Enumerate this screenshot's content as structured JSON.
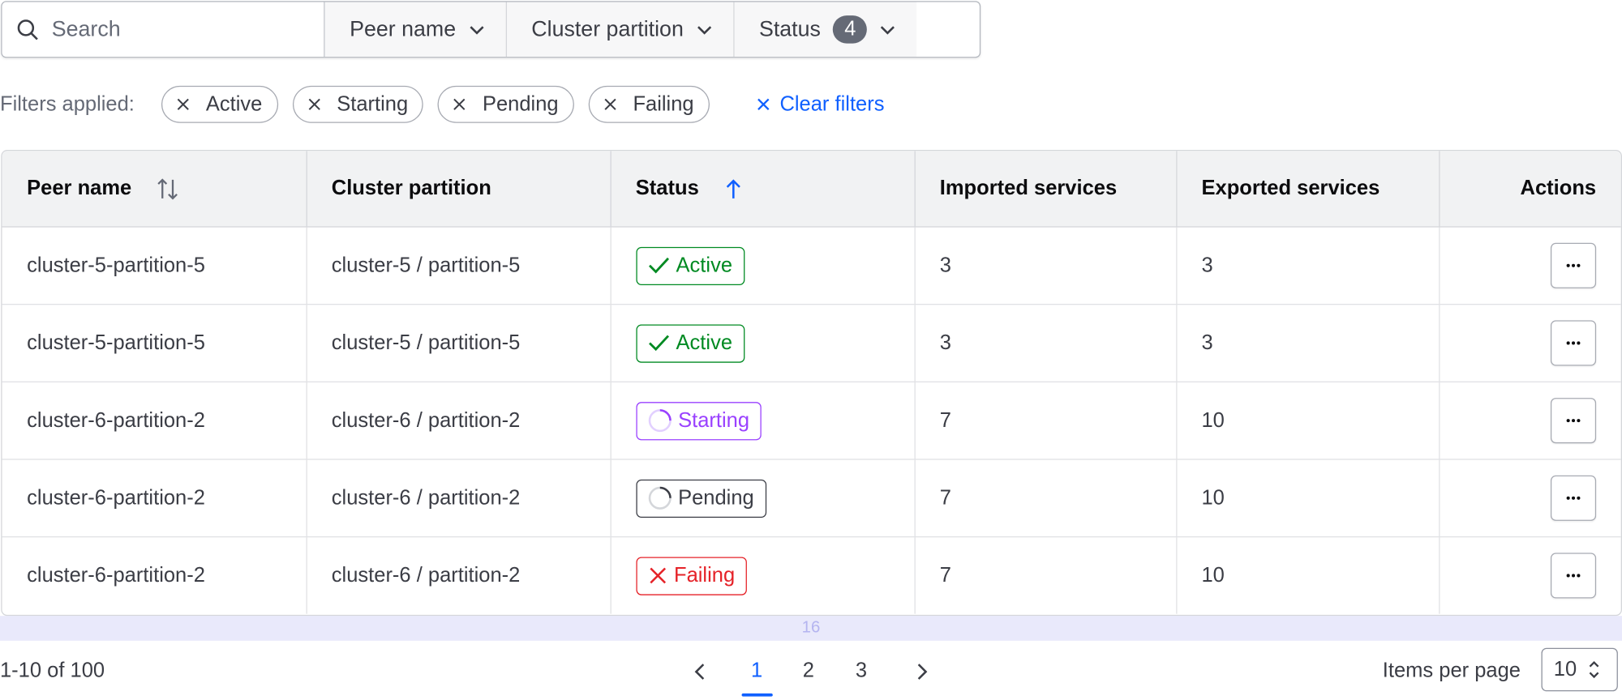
{
  "toolbar": {
    "search_placeholder": "Search",
    "peer_name": "Peer name",
    "cluster_partition": "Cluster partition",
    "status": "Status",
    "status_count": "4"
  },
  "filters": {
    "label": "Filters applied:",
    "chips": [
      "Active",
      "Starting",
      "Pending",
      "Failing"
    ],
    "clear": "Clear filters"
  },
  "table": {
    "headers": [
      "Peer name",
      "Cluster partition",
      "Status",
      "Imported services",
      "Exported services",
      "Actions"
    ],
    "rows": [
      {
        "peer": "cluster-5-partition-5",
        "partition": "cluster-5 / partition-5",
        "status": "Active",
        "imported": "3",
        "exported": "3"
      },
      {
        "peer": "cluster-5-partition-5",
        "partition": "cluster-5 / partition-5",
        "status": "Active",
        "imported": "3",
        "exported": "3"
      },
      {
        "peer": "cluster-6-partition-2",
        "partition": "cluster-6 / partition-2",
        "status": "Starting",
        "imported": "7",
        "exported": "10"
      },
      {
        "peer": "cluster-6-partition-2",
        "partition": "cluster-6 / partition-2",
        "status": "Pending",
        "imported": "7",
        "exported": "10"
      },
      {
        "peer": "cluster-6-partition-2",
        "partition": "cluster-6 / partition-2",
        "status": "Failing",
        "imported": "7",
        "exported": "10"
      }
    ]
  },
  "status_colors": {
    "Active": "#008a22",
    "Starting": "#9a41ff",
    "Pending": "#3b3d45",
    "Failing": "#e52228"
  },
  "band_label": "16",
  "pagination": {
    "range": "1-10 of 100",
    "pages": [
      "1",
      "2",
      "3"
    ],
    "current": "1",
    "items_per_page_label": "Items per page",
    "items_per_page": "10"
  }
}
